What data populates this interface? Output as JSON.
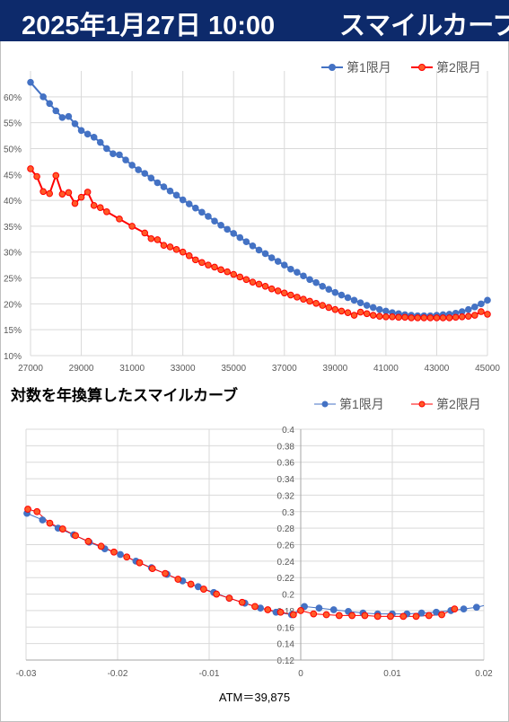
{
  "header": {
    "date": "2025年1月27日 10:00",
    "title": "スマイルカーブ"
  },
  "chart2_title": "対数を年換算したスマイルカーブ",
  "atm_label": "ATM＝39,875",
  "colors": {
    "header_bg": "#0d2a6b",
    "series1": "#4472c4",
    "series2": "#ff0000",
    "series2_fill": "#ff5a28",
    "grid": "#d9d9d9"
  },
  "chart_data": [
    {
      "type": "line",
      "title": "",
      "legend_position": "top-right",
      "grid": true,
      "xlim": [
        27000,
        45000
      ],
      "ylim": [
        0.1,
        0.65
      ],
      "x_ticks": [
        27000,
        29000,
        31000,
        33000,
        35000,
        37000,
        39000,
        41000,
        43000,
        45000
      ],
      "x_tick_labels": [
        "27000",
        "29000",
        "31000",
        "33000",
        "35000",
        "37000",
        "39000",
        "41000",
        "43000",
        "45000"
      ],
      "y_ticks": [
        0.1,
        0.15,
        0.2,
        0.25,
        0.3,
        0.35,
        0.4,
        0.45,
        0.5,
        0.55,
        0.6
      ],
      "y_tick_labels": [
        "10%",
        "15%",
        "20%",
        "25%",
        "30%",
        "35%",
        "40%",
        "45%",
        "50%",
        "55%",
        "60%"
      ],
      "series": [
        {
          "name": "第1限月",
          "x": [
            27000,
            27500,
            27750,
            28000,
            28250,
            28500,
            28750,
            29000,
            29250,
            29500,
            29750,
            30000,
            30250,
            30500,
            30750,
            31000,
            31250,
            31500,
            31750,
            32000,
            32250,
            32500,
            32750,
            33000,
            33250,
            33500,
            33750,
            34000,
            34250,
            34500,
            34750,
            35000,
            35250,
            35500,
            35750,
            36000,
            36250,
            36500,
            36750,
            37000,
            37250,
            37500,
            37750,
            38000,
            38250,
            38500,
            38750,
            39000,
            39250,
            39500,
            39750,
            40000,
            40250,
            40500,
            40750,
            41000,
            41250,
            41500,
            41750,
            42000,
            42250,
            42500,
            42750,
            43000,
            43250,
            43500,
            43750,
            44000,
            44250,
            44500,
            44750,
            45000
          ],
          "values": [
            0.628,
            0.6,
            0.587,
            0.573,
            0.56,
            0.562,
            0.548,
            0.535,
            0.528,
            0.522,
            0.512,
            0.5,
            0.49,
            0.488,
            0.478,
            0.468,
            0.459,
            0.452,
            0.443,
            0.434,
            0.426,
            0.418,
            0.41,
            0.401,
            0.393,
            0.385,
            0.377,
            0.369,
            0.36,
            0.352,
            0.344,
            0.336,
            0.328,
            0.32,
            0.312,
            0.304,
            0.297,
            0.289,
            0.282,
            0.275,
            0.267,
            0.261,
            0.254,
            0.247,
            0.241,
            0.234,
            0.228,
            0.222,
            0.217,
            0.212,
            0.207,
            0.202,
            0.197,
            0.193,
            0.189,
            0.186,
            0.183,
            0.181,
            0.179,
            0.178,
            0.177,
            0.177,
            0.177,
            0.178,
            0.179,
            0.18,
            0.182,
            0.185,
            0.189,
            0.194,
            0.2,
            0.207
          ]
        },
        {
          "name": "第2限月",
          "x": [
            27000,
            27250,
            27500,
            27750,
            28000,
            28250,
            28500,
            28750,
            29000,
            29250,
            29500,
            29750,
            30000,
            30500,
            31000,
            31500,
            31750,
            32000,
            32250,
            32500,
            32750,
            33000,
            33250,
            33500,
            33750,
            34000,
            34250,
            34500,
            34750,
            35000,
            35250,
            35500,
            35750,
            36000,
            36250,
            36500,
            36750,
            37000,
            37250,
            37500,
            37750,
            38000,
            38250,
            38500,
            38750,
            39000,
            39250,
            39500,
            39750,
            40000,
            40250,
            40500,
            40750,
            41000,
            41250,
            41500,
            41750,
            42000,
            42250,
            42500,
            42750,
            43000,
            43250,
            43500,
            43750,
            44000,
            44250,
            44500,
            44750,
            45000
          ],
          "values": [
            0.461,
            0.446,
            0.417,
            0.413,
            0.448,
            0.412,
            0.415,
            0.394,
            0.406,
            0.416,
            0.39,
            0.386,
            0.378,
            0.364,
            0.35,
            0.337,
            0.326,
            0.324,
            0.313,
            0.31,
            0.305,
            0.3,
            0.293,
            0.285,
            0.28,
            0.275,
            0.271,
            0.266,
            0.262,
            0.257,
            0.252,
            0.247,
            0.242,
            0.238,
            0.234,
            0.229,
            0.225,
            0.221,
            0.217,
            0.213,
            0.209,
            0.205,
            0.201,
            0.197,
            0.193,
            0.189,
            0.186,
            0.183,
            0.178,
            0.184,
            0.181,
            0.178,
            0.176,
            0.175,
            0.175,
            0.174,
            0.174,
            0.173,
            0.173,
            0.173,
            0.173,
            0.173,
            0.173,
            0.173,
            0.174,
            0.175,
            0.176,
            0.178,
            0.185,
            0.18
          ]
        }
      ]
    },
    {
      "type": "scatter",
      "title": "対数を年換算したスマイルカーブ",
      "legend_position": "top-right",
      "grid": true,
      "xlim": [
        -0.03,
        0.02
      ],
      "ylim": [
        0.12,
        0.4
      ],
      "x_ticks": [
        -0.03,
        -0.02,
        -0.01,
        0,
        0.01,
        0.02
      ],
      "x_tick_labels": [
        "-0.03",
        "-0.02",
        "-0.01",
        "0",
        "0.01",
        "0.02"
      ],
      "y_ticks": [
        0.12,
        0.14,
        0.16,
        0.18,
        0.2,
        0.22,
        0.24,
        0.26,
        0.28,
        0.3,
        0.32,
        0.34,
        0.36,
        0.38,
        0.4
      ],
      "y_tick_labels": [
        "0.12",
        "0.14",
        "0.16",
        "0.18",
        "0.2",
        "0.22",
        "0.24",
        "0.26",
        "0.28",
        "0.3",
        "0.32",
        "0.34",
        "0.36",
        "0.38",
        "0.4"
      ],
      "series": [
        {
          "name": "第1限月",
          "x": [
            -0.0299,
            -0.0282,
            -0.0265,
            -0.0248,
            -0.0231,
            -0.0214,
            -0.0197,
            -0.018,
            -0.0163,
            -0.0146,
            -0.0129,
            -0.0112,
            -0.0095,
            -0.0078,
            -0.0061,
            -0.0044,
            -0.0027,
            -0.001,
            0.0004,
            0.002,
            0.0036,
            0.0052,
            0.0068,
            0.0084,
            0.01,
            0.0116,
            0.0132,
            0.0148,
            0.0164,
            0.0178,
            0.0192
          ],
          "values": [
            0.298,
            0.29,
            0.28,
            0.272,
            0.263,
            0.255,
            0.248,
            0.24,
            0.232,
            0.224,
            0.216,
            0.209,
            0.202,
            0.195,
            0.189,
            0.183,
            0.178,
            0.175,
            0.185,
            0.183,
            0.181,
            0.179,
            0.177,
            0.176,
            0.176,
            0.176,
            0.177,
            0.178,
            0.18,
            0.182,
            0.184
          ]
        },
        {
          "name": "第2限月",
          "x": [
            -0.0298,
            -0.0288,
            -0.0274,
            -0.026,
            -0.0246,
            -0.0232,
            -0.0218,
            -0.0204,
            -0.019,
            -0.0176,
            -0.0162,
            -0.0148,
            -0.0134,
            -0.012,
            -0.0106,
            -0.0092,
            -0.0078,
            -0.0064,
            -0.005,
            -0.0036,
            -0.0022,
            -0.0008,
            0.0,
            0.0014,
            0.0028,
            0.0042,
            0.0056,
            0.007,
            0.0084,
            0.0098,
            0.0112,
            0.0126,
            0.014,
            0.0154,
            0.0168
          ],
          "values": [
            0.303,
            0.3,
            0.286,
            0.279,
            0.271,
            0.264,
            0.258,
            0.251,
            0.245,
            0.238,
            0.231,
            0.225,
            0.218,
            0.212,
            0.206,
            0.2,
            0.195,
            0.19,
            0.185,
            0.181,
            0.178,
            0.175,
            0.18,
            0.176,
            0.175,
            0.174,
            0.174,
            0.174,
            0.173,
            0.173,
            0.173,
            0.173,
            0.174,
            0.175,
            0.182
          ]
        }
      ]
    }
  ]
}
